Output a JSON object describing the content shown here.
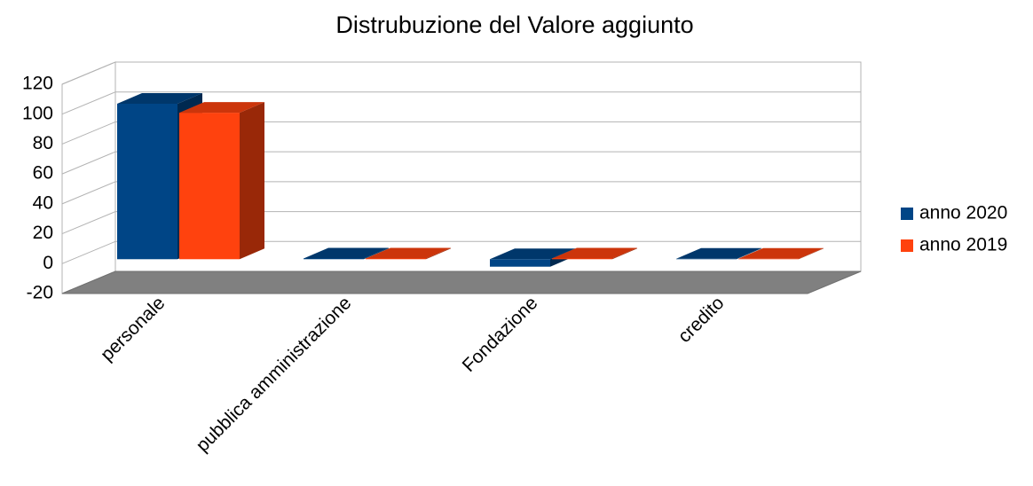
{
  "chart_data": {
    "type": "bar3d",
    "title": "Distrubuzione del Valore aggiunto",
    "categories": [
      "personale",
      "pubblica amministrazione",
      "Fondazione",
      "credito"
    ],
    "series": [
      {
        "name": "anno 2020",
        "color": "#004586",
        "values": [
          104,
          0.5,
          -5,
          0.3
        ]
      },
      {
        "name": "anno 2019",
        "color": "#ff420e",
        "values": [
          98,
          0.5,
          0.5,
          0.3
        ]
      }
    ],
    "ylim": [
      -20,
      120
    ],
    "yticks": [
      -20,
      0,
      20,
      40,
      60,
      80,
      100,
      120
    ],
    "grid": true,
    "legend": "right"
  }
}
